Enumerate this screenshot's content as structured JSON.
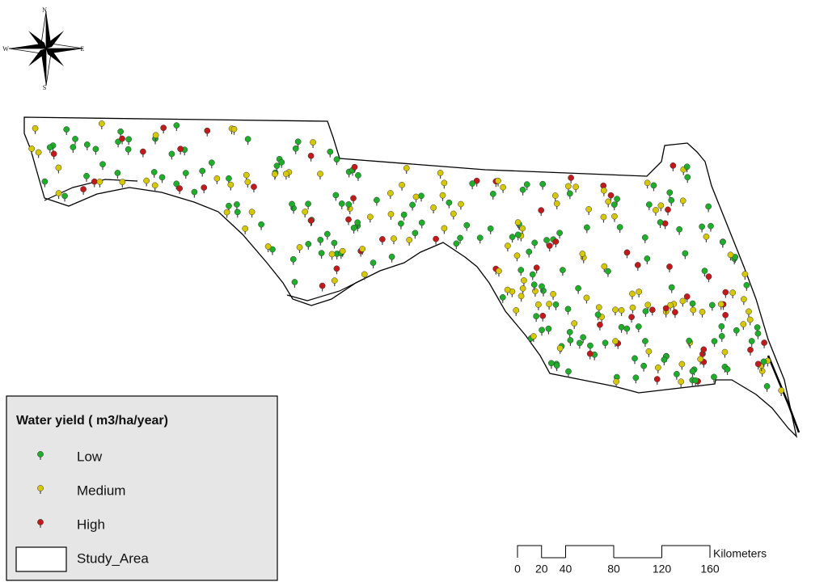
{
  "compass": {
    "north": "N",
    "south": "S",
    "east": "E",
    "west": "W"
  },
  "legend": {
    "title": "Water yield ( m3/ha/year)",
    "items": [
      {
        "label": "Low",
        "color": "#1fae2a"
      },
      {
        "label": "Medium",
        "color": "#d6c800"
      },
      {
        "label": "High",
        "color": "#c21a1a"
      },
      {
        "label": "Study_Area"
      }
    ]
  },
  "scale_bar": {
    "unit": "Kilometers",
    "ticks": [
      0,
      20,
      40,
      80,
      120,
      160
    ]
  }
}
